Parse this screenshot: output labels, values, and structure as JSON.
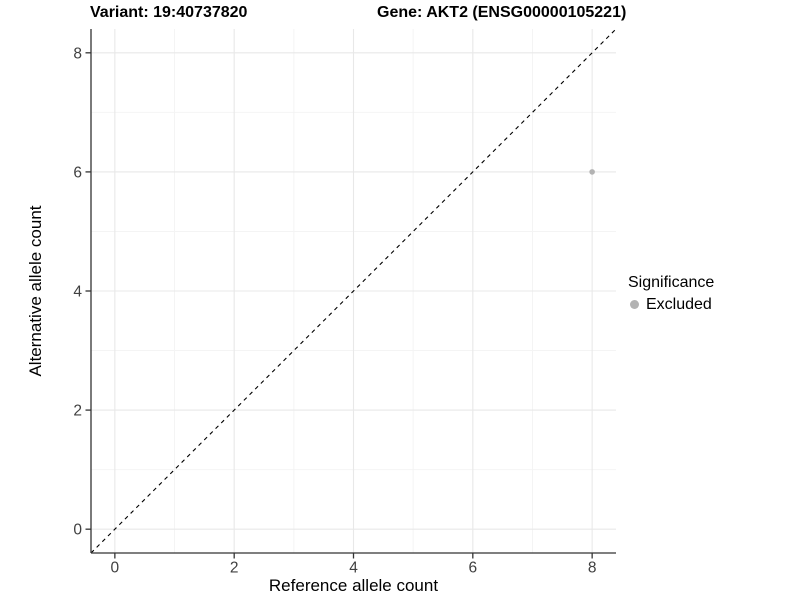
{
  "header": {
    "variant_title": "Variant: 19:40737820",
    "gene_title": "Gene: AKT2 (ENSG00000105221)"
  },
  "chart_data": {
    "type": "scatter",
    "titles": [
      "Variant: 19:40737820",
      "Gene: AKT2 (ENSG00000105221)"
    ],
    "xlabel": "Reference allele count",
    "ylabel": "Alternative allele count",
    "xlim": [
      -0.4,
      8.4
    ],
    "ylim": [
      -0.4,
      8.4
    ],
    "xticks": [
      0,
      2,
      4,
      6,
      8
    ],
    "yticks": [
      0,
      2,
      4,
      6,
      8
    ],
    "xminor": [
      1,
      3,
      5,
      7
    ],
    "yminor": [
      1,
      3,
      5,
      7
    ],
    "grid": "major+minor",
    "reference_line": {
      "kind": "identity",
      "from": [
        -0.4,
        -0.4
      ],
      "to": [
        8.4,
        8.4
      ],
      "style": "dashed",
      "color": "#000000"
    },
    "series": [
      {
        "name": "Excluded",
        "marker": "circle",
        "color": "#b3b3b3",
        "points": [
          [
            8,
            6
          ]
        ]
      }
    ],
    "legend": {
      "title": "Significance",
      "position": "right",
      "entries": [
        {
          "label": "Excluded",
          "color": "#b3b3b3"
        }
      ]
    },
    "colors": {
      "background": "#ffffff",
      "grid_major": "#e8e8e8",
      "grid_minor": "#f4f4f4",
      "axis_line": "#333333",
      "tick_mark": "#333333",
      "tick_label": "#404040",
      "reference_line": "#000000",
      "point": "#b3b3b3",
      "text": "#000000"
    }
  }
}
